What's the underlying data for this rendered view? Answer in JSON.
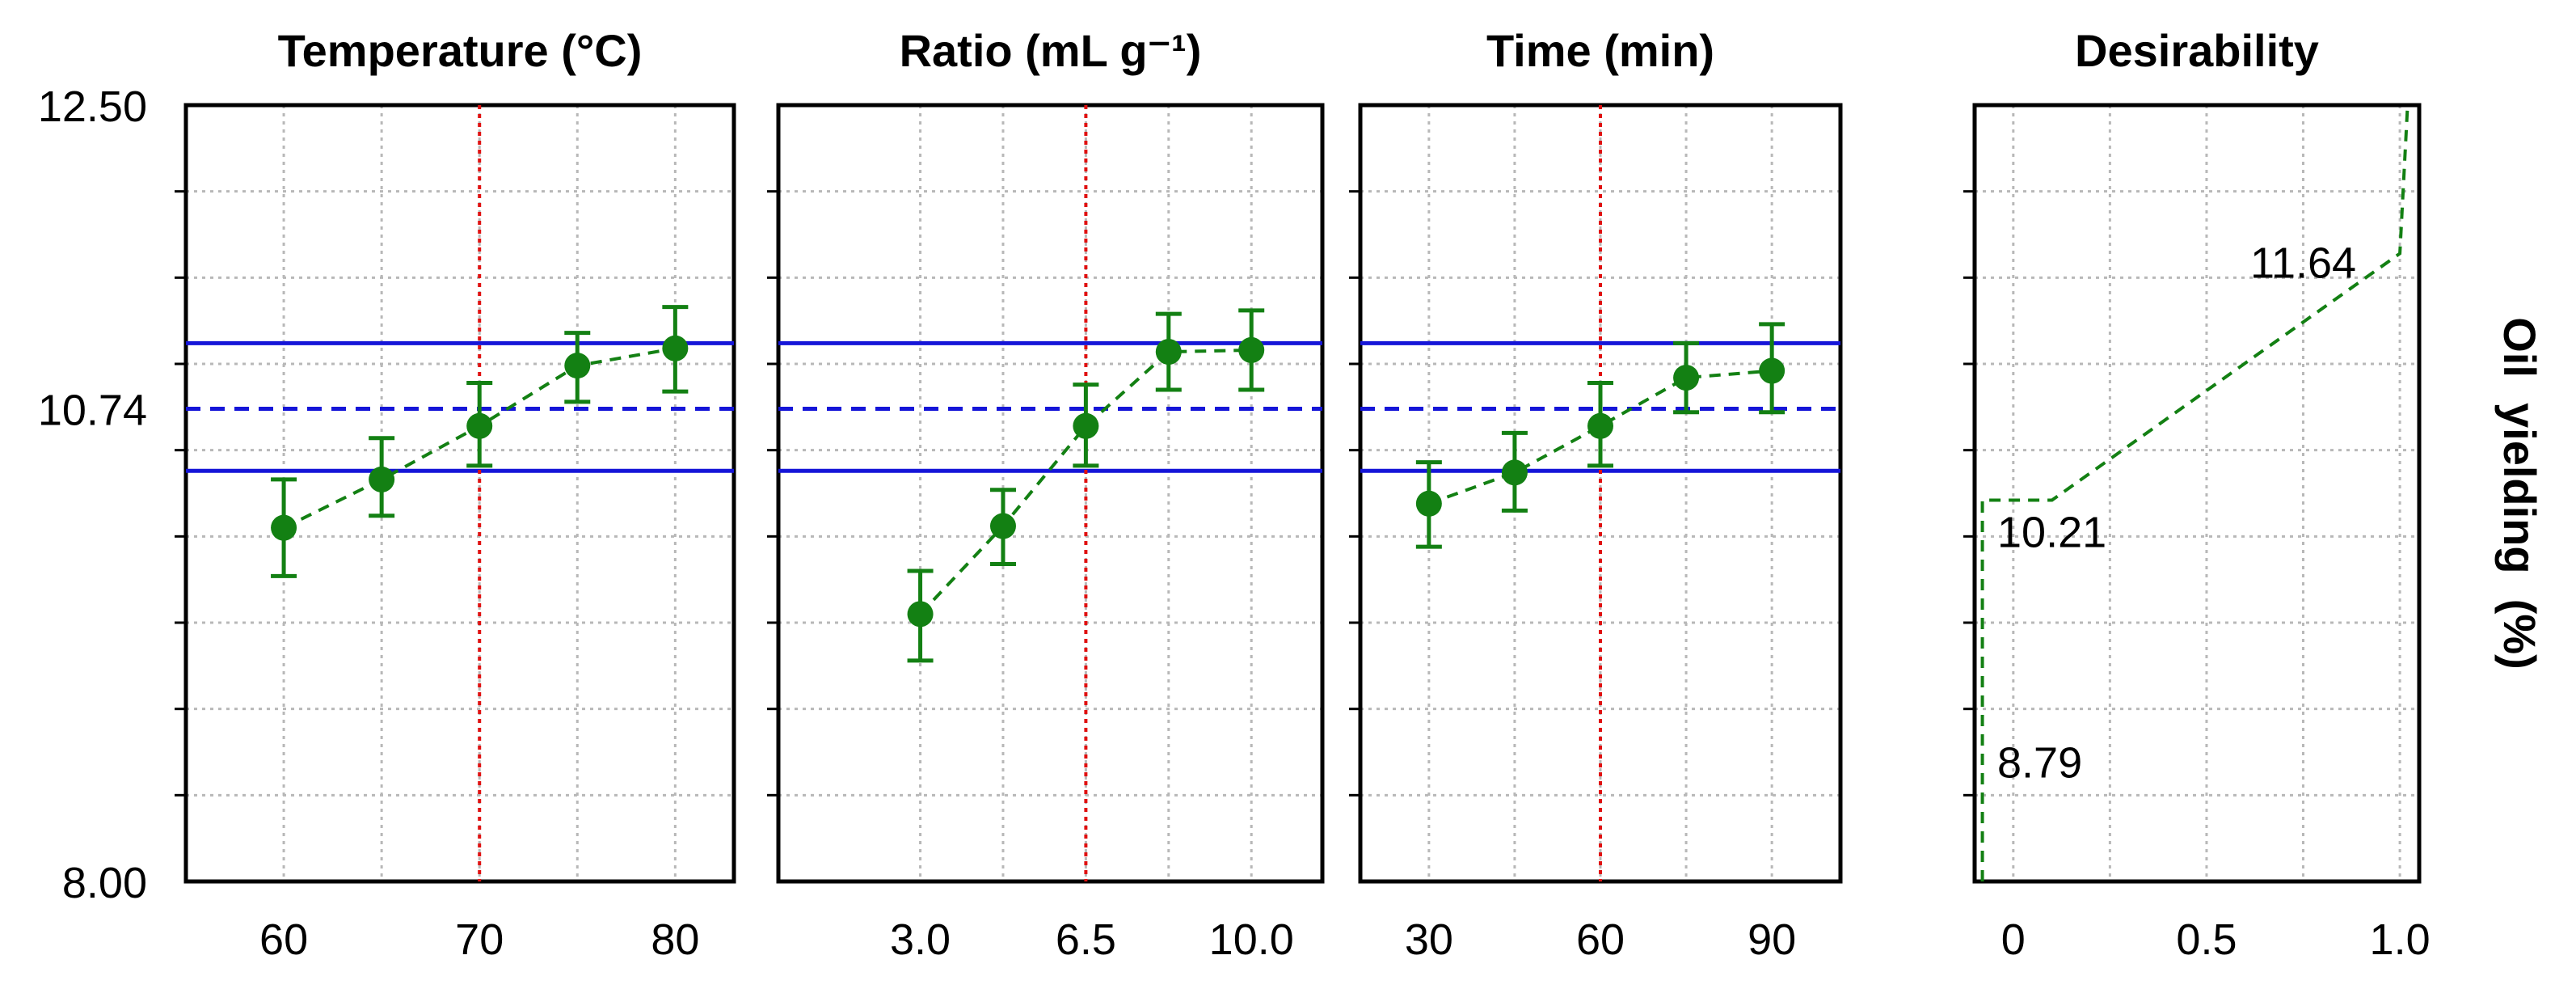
{
  "chart_data": {
    "type": "profile",
    "ylabel": "Oil  yielding  (%)",
    "ylim": [
      8.0,
      12.5
    ],
    "yticks": [
      {
        "value": 12.5,
        "label": "12.50"
      },
      {
        "value": 10.74,
        "label": "10.74"
      },
      {
        "value": 8.0,
        "label": "8.00"
      }
    ],
    "ref_lines": {
      "predicted": 10.74,
      "ci_low": 10.38,
      "ci_high": 11.12
    },
    "colors": {
      "points": "#138013",
      "ref": "#1515d8",
      "optimum": "#e01010",
      "frame": "#000000",
      "grid": "#b8b8b8"
    },
    "panels": [
      {
        "title": "Temperature (°C)",
        "xlim": [
          55,
          83
        ],
        "xticks": [
          {
            "value": 60,
            "label": "60"
          },
          {
            "value": 70,
            "label": "70"
          },
          {
            "value": 80,
            "label": "80"
          }
        ],
        "optimum": 70,
        "points": [
          {
            "x": 60,
            "y": 10.05,
            "lo": 9.77,
            "hi": 10.33
          },
          {
            "x": 65,
            "y": 10.33,
            "lo": 10.12,
            "hi": 10.57
          },
          {
            "x": 70,
            "y": 10.64,
            "lo": 10.41,
            "hi": 10.89
          },
          {
            "x": 75,
            "y": 10.99,
            "lo": 10.78,
            "hi": 11.18
          },
          {
            "x": 80,
            "y": 11.09,
            "lo": 10.84,
            "hi": 11.33
          }
        ]
      },
      {
        "title": "Ratio (mL g⁻¹)",
        "xlim": [
          0.0,
          11.5
        ],
        "xticks": [
          {
            "value": 3.0,
            "label": "3.0"
          },
          {
            "value": 6.5,
            "label": "6.5"
          },
          {
            "value": 10.0,
            "label": "10.0"
          }
        ],
        "optimum": 6.5,
        "points": [
          {
            "x": 3.0,
            "y": 9.55,
            "lo": 9.28,
            "hi": 9.8
          },
          {
            "x": 4.75,
            "y": 10.06,
            "lo": 9.84,
            "hi": 10.27
          },
          {
            "x": 6.5,
            "y": 10.64,
            "lo": 10.41,
            "hi": 10.88
          },
          {
            "x": 8.25,
            "y": 11.07,
            "lo": 10.85,
            "hi": 11.29
          },
          {
            "x": 10.0,
            "y": 11.08,
            "lo": 10.85,
            "hi": 11.31
          }
        ]
      },
      {
        "title": "Time (min)",
        "xlim": [
          18,
          102
        ],
        "xticks": [
          {
            "value": 30,
            "label": "30"
          },
          {
            "value": 60,
            "label": "60"
          },
          {
            "value": 90,
            "label": "90"
          }
        ],
        "optimum": 60,
        "points": [
          {
            "x": 30,
            "y": 10.19,
            "lo": 9.94,
            "hi": 10.43
          },
          {
            "x": 45,
            "y": 10.37,
            "lo": 10.15,
            "hi": 10.6
          },
          {
            "x": 60,
            "y": 10.64,
            "lo": 10.41,
            "hi": 10.89
          },
          {
            "x": 75,
            "y": 10.92,
            "lo": 10.72,
            "hi": 11.12
          },
          {
            "x": 90,
            "y": 10.96,
            "lo": 10.72,
            "hi": 11.23
          }
        ]
      }
    ],
    "desirability": {
      "title": "Desirability",
      "xlim": [
        -0.1,
        1.05
      ],
      "xticks": [
        {
          "value": 0,
          "label": "0"
        },
        {
          "value": 0.5,
          "label": "0.5"
        },
        {
          "value": 1.0,
          "label": "1.0"
        }
      ],
      "curve": [
        [
          -0.08,
          8.0
        ],
        [
          -0.08,
          10.21
        ],
        [
          0.1,
          10.21
        ],
        [
          1.0,
          11.64
        ],
        [
          1.02,
          12.5
        ]
      ],
      "annotations": [
        {
          "text": "11.64",
          "value": 11.64
        },
        {
          "text": "10.21",
          "value": 10.21
        },
        {
          "text": "8.79",
          "value": 8.79
        }
      ]
    }
  }
}
